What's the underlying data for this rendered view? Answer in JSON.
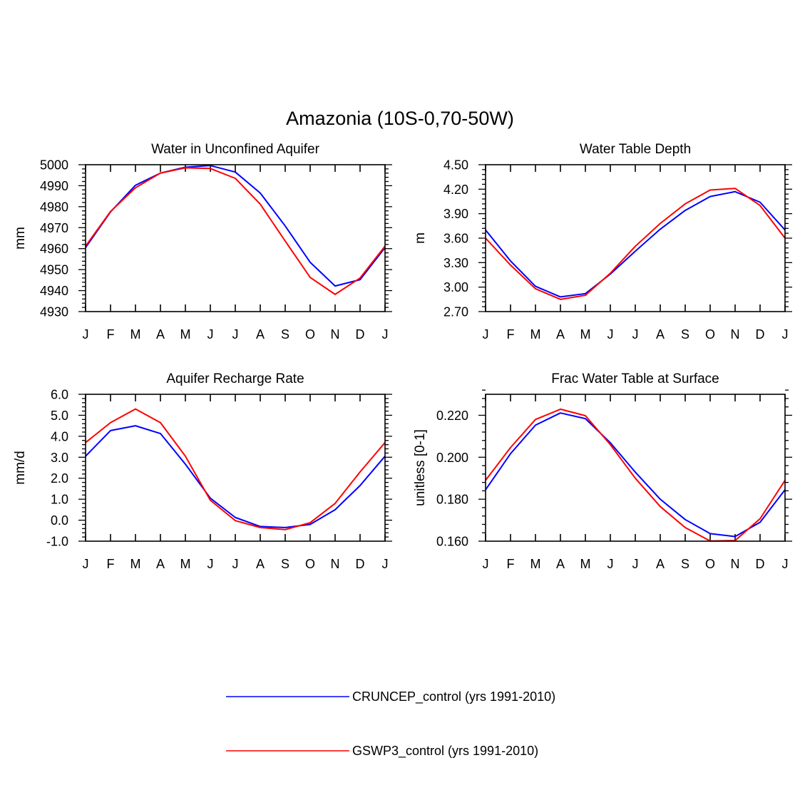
{
  "figure_title": "Amazonia (10S-0,70-50W)",
  "series_styles": [
    {
      "name": "CRUNCEP_control (yrs 1991-2010)",
      "color": "#0000ff"
    },
    {
      "name": "GSWP3_control (yrs 1991-2010)",
      "color": "#ff0000"
    }
  ],
  "legend": {
    "items": [
      {
        "label": "CRUNCEP_control (yrs 1991-2010)",
        "color": "#0000ff"
      },
      {
        "label": "GSWP3_control (yrs 1991-2010)",
        "color": "#ff0000"
      }
    ]
  },
  "chart_data": [
    {
      "type": "line",
      "title": "Water in Unconfined Aquifer",
      "xlabel": "",
      "ylabel": "mm",
      "categories": [
        "J",
        "F",
        "M",
        "A",
        "M",
        "J",
        "J",
        "A",
        "S",
        "O",
        "N",
        "D",
        "J"
      ],
      "ylim": [
        4930,
        5000
      ],
      "yticks": [
        4930,
        4940,
        4950,
        4960,
        4970,
        4980,
        4990,
        5000
      ],
      "ytick_labels": [
        "4930",
        "4940",
        "4950",
        "4960",
        "4970",
        "4980",
        "4990",
        "5000"
      ],
      "series": [
        {
          "name": "CRUNCEP_control (yrs 1991-2010)",
          "values": [
            4960.5,
            4977.5,
            4990.2,
            4996.0,
            4998.8,
            4999.6,
            4996.5,
            4986.5,
            4970.8,
            4953.5,
            4942.2,
            4945.2,
            4960.5
          ]
        },
        {
          "name": "GSWP3_control (yrs 1991-2010)",
          "values": [
            4961.2,
            4977.7,
            4989.0,
            4996.0,
            4998.5,
            4998.2,
            4993.5,
            4981.2,
            4963.6,
            4946.3,
            4938.2,
            4946.0,
            4961.2
          ]
        }
      ]
    },
    {
      "type": "line",
      "title": "Water Table Depth",
      "xlabel": "",
      "ylabel": "m",
      "categories": [
        "J",
        "F",
        "M",
        "A",
        "M",
        "J",
        "J",
        "A",
        "S",
        "O",
        "N",
        "D",
        "J"
      ],
      "ylim": [
        2.7,
        4.5
      ],
      "yticks": [
        2.7,
        3.0,
        3.3,
        3.6,
        3.9,
        4.2,
        4.5
      ],
      "ytick_labels": [
        "2.70",
        "3.00",
        "3.30",
        "3.60",
        "3.90",
        "4.20",
        "4.50"
      ],
      "series": [
        {
          "name": "CRUNCEP_control (yrs 1991-2010)",
          "values": [
            3.7,
            3.32,
            3.01,
            2.88,
            2.92,
            3.16,
            3.44,
            3.71,
            3.94,
            4.11,
            4.17,
            4.04,
            3.7
          ]
        },
        {
          "name": "GSWP3_control (yrs 1991-2010)",
          "values": [
            3.6,
            3.27,
            2.98,
            2.85,
            2.9,
            3.17,
            3.5,
            3.78,
            4.02,
            4.19,
            4.21,
            4.0,
            3.6
          ]
        }
      ]
    },
    {
      "type": "line",
      "title": "Aquifer Recharge Rate",
      "xlabel": "",
      "ylabel": "mm/d",
      "categories": [
        "J",
        "F",
        "M",
        "A",
        "M",
        "J",
        "J",
        "A",
        "S",
        "O",
        "N",
        "D",
        "J"
      ],
      "ylim": [
        -1.0,
        6.0
      ],
      "yticks": [
        -1.0,
        0.0,
        1.0,
        2.0,
        3.0,
        4.0,
        5.0,
        6.0
      ],
      "ytick_labels": [
        "-1.0",
        "0.0",
        "1.0",
        "2.0",
        "3.0",
        "4.0",
        "5.0",
        "6.0"
      ],
      "series": [
        {
          "name": "CRUNCEP_control (yrs 1991-2010)",
          "values": [
            3.05,
            4.27,
            4.5,
            4.13,
            2.67,
            1.05,
            0.13,
            -0.3,
            -0.35,
            -0.2,
            0.5,
            1.65,
            3.05
          ]
        },
        {
          "name": "GSWP3_control (yrs 1991-2010)",
          "values": [
            3.7,
            4.65,
            5.3,
            4.65,
            3.05,
            0.95,
            -0.02,
            -0.35,
            -0.45,
            -0.12,
            0.8,
            2.3,
            3.7
          ]
        }
      ]
    },
    {
      "type": "line",
      "title": "Frac Water Table at Surface",
      "xlabel": "",
      "ylabel": "unitless [0-1]",
      "categories": [
        "J",
        "F",
        "M",
        "A",
        "M",
        "J",
        "J",
        "A",
        "S",
        "O",
        "N",
        "D",
        "J"
      ],
      "ylim": [
        0.16,
        0.23
      ],
      "yticks": [
        0.16,
        0.18,
        0.2,
        0.22
      ],
      "ytick_labels": [
        "0.160",
        "0.180",
        "0.200",
        "0.220"
      ],
      "series": [
        {
          "name": "CRUNCEP_control (yrs 1991-2010)",
          "values": [
            0.1845,
            0.2017,
            0.2153,
            0.2211,
            0.2184,
            0.2069,
            0.1929,
            0.18,
            0.1703,
            0.1636,
            0.1622,
            0.169,
            0.1845
          ]
        },
        {
          "name": "GSWP3_control (yrs 1991-2010)",
          "values": [
            0.189,
            0.2046,
            0.218,
            0.2229,
            0.2198,
            0.206,
            0.19,
            0.1765,
            0.1665,
            0.1601,
            0.1603,
            0.1707,
            0.189
          ]
        }
      ]
    }
  ]
}
